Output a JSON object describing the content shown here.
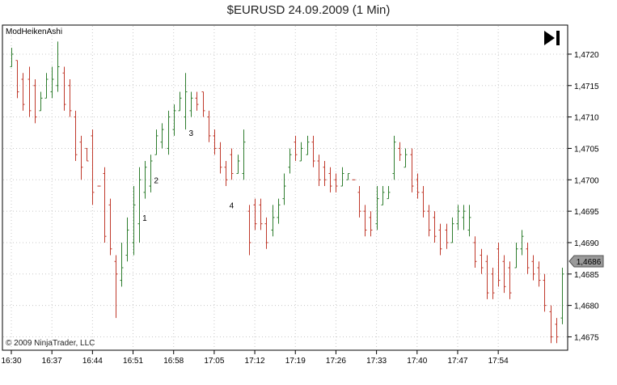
{
  "title": "$EURUSD  24.09.2009 (1 Min)",
  "indicator_label": "ModHeikenAshi",
  "copyright": "© 2009 NinjaTrader, LLC",
  "current_price_label": "1,4686",
  "colors": {
    "up": "#2e7d2e",
    "down": "#c0392b",
    "grid": "#c8c8c8",
    "axis": "#000000",
    "price_box": "#9a9a9a"
  },
  "chart_data": {
    "type": "ohlc",
    "title": "$EURUSD  24.09.2009 (1 Min)",
    "xlabel": "",
    "ylabel": "",
    "ylim": [
      1.4673,
      1.47245
    ],
    "y_ticks": [
      "1,4675",
      "1,4680",
      "1,4685",
      "1,4690",
      "1,4695",
      "1,4700",
      "1,4705",
      "1,4710",
      "1,4715",
      "1,4720"
    ],
    "x_ticks": [
      "16:30",
      "16:37",
      "16:44",
      "16:51",
      "16:58",
      "17:05",
      "17:12",
      "17:19",
      "17:26",
      "17:33",
      "17:40",
      "17:47",
      "17:54"
    ],
    "grid": true,
    "annotations": [
      {
        "label": "1",
        "bar": 23,
        "y": 1.4694
      },
      {
        "label": "2",
        "bar": 25,
        "y": 1.47
      },
      {
        "label": "3",
        "bar": 31,
        "y": 1.47075
      },
      {
        "label": "4",
        "bar": 38,
        "y": 1.4696
      }
    ],
    "bars": [
      {
        "d": "u",
        "h": 1.4721,
        "l": 1.4718,
        "o": 1.4718,
        "c": 1.472
      },
      {
        "d": "d",
        "h": 1.4719,
        "l": 1.4713,
        "o": 1.4719,
        "c": 1.4714
      },
      {
        "d": "d",
        "h": 1.4717,
        "l": 1.4711,
        "o": 1.4716,
        "c": 1.4712
      },
      {
        "d": "d",
        "h": 1.4718,
        "l": 1.471,
        "o": 1.4716,
        "c": 1.4711
      },
      {
        "d": "d",
        "h": 1.4716,
        "l": 1.4709,
        "o": 1.4715,
        "c": 1.471
      },
      {
        "d": "u",
        "h": 1.4714,
        "l": 1.4711,
        "o": 1.4711,
        "c": 1.4713
      },
      {
        "d": "u",
        "h": 1.4717,
        "l": 1.4713,
        "o": 1.4713,
        "c": 1.4716
      },
      {
        "d": "u",
        "h": 1.4718,
        "l": 1.4713,
        "o": 1.4714,
        "c": 1.4716
      },
      {
        "d": "u",
        "h": 1.4722,
        "l": 1.4714,
        "o": 1.4715,
        "c": 1.4718
      },
      {
        "d": "d",
        "h": 1.4718,
        "l": 1.4711,
        "o": 1.4717,
        "c": 1.4712
      },
      {
        "d": "d",
        "h": 1.4716,
        "l": 1.471,
        "o": 1.4715,
        "c": 1.4711
      },
      {
        "d": "d",
        "h": 1.4711,
        "l": 1.4703,
        "o": 1.471,
        "c": 1.4704
      },
      {
        "d": "d",
        "h": 1.4707,
        "l": 1.47,
        "o": 1.4706,
        "c": 1.4702
      },
      {
        "d": "d",
        "h": 1.4705,
        "l": 1.4703,
        "o": 1.4705,
        "c": 1.4703
      },
      {
        "d": "d",
        "h": 1.4708,
        "l": 1.4696,
        "o": 1.4707,
        "c": 1.4698
      },
      {
        "d": "d",
        "h": 1.4699,
        "l": 1.4699,
        "o": 1.4699,
        "c": 1.4699
      },
      {
        "d": "d",
        "h": 1.4702,
        "l": 1.469,
        "o": 1.4701,
        "c": 1.4691
      },
      {
        "d": "d",
        "h": 1.4697,
        "l": 1.4688,
        "o": 1.4696,
        "c": 1.4689
      },
      {
        "d": "d",
        "h": 1.4688,
        "l": 1.4678,
        "o": 1.4687,
        "c": 1.4685
      },
      {
        "d": "u",
        "h": 1.469,
        "l": 1.4683,
        "o": 1.4684,
        "c": 1.4686
      },
      {
        "d": "u",
        "h": 1.4694,
        "l": 1.4687,
        "o": 1.4688,
        "c": 1.4692
      },
      {
        "d": "u",
        "h": 1.4699,
        "l": 1.4688,
        "o": 1.469,
        "c": 1.4696
      },
      {
        "d": "u",
        "h": 1.4702,
        "l": 1.469,
        "o": 1.4693,
        "c": 1.47
      },
      {
        "d": "u",
        "h": 1.4703,
        "l": 1.4697,
        "o": 1.4698,
        "c": 1.4702
      },
      {
        "d": "u",
        "h": 1.4704,
        "l": 1.4698,
        "o": 1.4699,
        "c": 1.4703
      },
      {
        "d": "u",
        "h": 1.4708,
        "l": 1.4704,
        "o": 1.4704,
        "c": 1.4707
      },
      {
        "d": "u",
        "h": 1.4709,
        "l": 1.4705,
        "o": 1.4706,
        "c": 1.4708
      },
      {
        "d": "u",
        "h": 1.4711,
        "l": 1.4704,
        "o": 1.4705,
        "c": 1.471
      },
      {
        "d": "u",
        "h": 1.4712,
        "l": 1.4707,
        "o": 1.4708,
        "c": 1.4711
      },
      {
        "d": "u",
        "h": 1.4714,
        "l": 1.4711,
        "o": 1.4711,
        "c": 1.4713
      },
      {
        "d": "u",
        "h": 1.4717,
        "l": 1.4708,
        "o": 1.471,
        "c": 1.4714
      },
      {
        "d": "u",
        "h": 1.4714,
        "l": 1.471,
        "o": 1.4711,
        "c": 1.4713
      },
      {
        "d": "d",
        "h": 1.4714,
        "l": 1.4711,
        "o": 1.4713,
        "c": 1.4712
      },
      {
        "d": "d",
        "h": 1.4714,
        "l": 1.471,
        "o": 1.4714,
        "c": 1.4711
      },
      {
        "d": "d",
        "h": 1.4711,
        "l": 1.4706,
        "o": 1.471,
        "c": 1.4707
      },
      {
        "d": "d",
        "h": 1.4708,
        "l": 1.4704,
        "o": 1.4707,
        "c": 1.4705
      },
      {
        "d": "d",
        "h": 1.4706,
        "l": 1.4701,
        "o": 1.4705,
        "c": 1.4702
      },
      {
        "d": "d",
        "h": 1.4703,
        "l": 1.4699,
        "o": 1.4702,
        "c": 1.47
      },
      {
        "d": "d",
        "h": 1.4705,
        "l": 1.47,
        "o": 1.4704,
        "c": 1.4701
      },
      {
        "d": "u",
        "h": 1.4704,
        "l": 1.4701,
        "o": 1.4701,
        "c": 1.4703
      },
      {
        "d": "u",
        "h": 1.4708,
        "l": 1.47,
        "o": 1.4701,
        "c": 1.4706
      },
      {
        "d": "d",
        "h": 1.4696,
        "l": 1.4688,
        "o": 1.4695,
        "c": 1.469
      },
      {
        "d": "d",
        "h": 1.4697,
        "l": 1.4692,
        "o": 1.4696,
        "c": 1.4693
      },
      {
        "d": "d",
        "h": 1.4697,
        "l": 1.4692,
        "o": 1.4696,
        "c": 1.4693
      },
      {
        "d": "d",
        "h": 1.4694,
        "l": 1.4689,
        "o": 1.4693,
        "c": 1.469
      },
      {
        "d": "u",
        "h": 1.4696,
        "l": 1.4691,
        "o": 1.4692,
        "c": 1.4694
      },
      {
        "d": "u",
        "h": 1.4697,
        "l": 1.4693,
        "o": 1.4694,
        "c": 1.4696
      },
      {
        "d": "u",
        "h": 1.4701,
        "l": 1.4696,
        "o": 1.4697,
        "c": 1.4699
      },
      {
        "d": "u",
        "h": 1.4705,
        "l": 1.4701,
        "o": 1.4702,
        "c": 1.4704
      },
      {
        "d": "d",
        "h": 1.4707,
        "l": 1.4703,
        "o": 1.4706,
        "c": 1.4704
      },
      {
        "d": "u",
        "h": 1.4706,
        "l": 1.4703,
        "o": 1.4703,
        "c": 1.4705
      },
      {
        "d": "u",
        "h": 1.4707,
        "l": 1.4704,
        "o": 1.4704,
        "c": 1.4706
      },
      {
        "d": "d",
        "h": 1.4707,
        "l": 1.4702,
        "o": 1.4706,
        "c": 1.4703
      },
      {
        "d": "d",
        "h": 1.4704,
        "l": 1.4699,
        "o": 1.4703,
        "c": 1.47
      },
      {
        "d": "d",
        "h": 1.4703,
        "l": 1.4699,
        "o": 1.4702,
        "c": 1.47
      },
      {
        "d": "d",
        "h": 1.4702,
        "l": 1.4698,
        "o": 1.4701,
        "c": 1.4699
      },
      {
        "d": "d",
        "h": 1.4701,
        "l": 1.4698,
        "o": 1.47,
        "c": 1.4699
      },
      {
        "d": "u",
        "h": 1.4702,
        "l": 1.4699,
        "o": 1.4699,
        "c": 1.4701
      },
      {
        "d": "u",
        "h": 1.4701,
        "l": 1.47,
        "o": 1.47,
        "c": 1.4701
      },
      {
        "d": "d",
        "h": 1.47,
        "l": 1.47,
        "o": 1.47,
        "c": 1.47
      },
      {
        "d": "d",
        "h": 1.4699,
        "l": 1.4694,
        "o": 1.4698,
        "c": 1.4695
      },
      {
        "d": "d",
        "h": 1.4696,
        "l": 1.4691,
        "o": 1.4695,
        "c": 1.4692
      },
      {
        "d": "d",
        "h": 1.4695,
        "l": 1.4691,
        "o": 1.4694,
        "c": 1.4692
      },
      {
        "d": "u",
        "h": 1.4699,
        "l": 1.4692,
        "o": 1.4693,
        "c": 1.4697
      },
      {
        "d": "u",
        "h": 1.4699,
        "l": 1.4696,
        "o": 1.4696,
        "c": 1.4698
      },
      {
        "d": "u",
        "h": 1.4699,
        "l": 1.4697,
        "o": 1.4697,
        "c": 1.4698
      },
      {
        "d": "u",
        "h": 1.4707,
        "l": 1.47,
        "o": 1.4701,
        "c": 1.4706
      },
      {
        "d": "d",
        "h": 1.4706,
        "l": 1.4703,
        "o": 1.4705,
        "c": 1.4704
      },
      {
        "d": "u",
        "h": 1.4705,
        "l": 1.4702,
        "o": 1.4702,
        "c": 1.4704
      },
      {
        "d": "d",
        "h": 1.4705,
        "l": 1.4698,
        "o": 1.4704,
        "c": 1.4699
      },
      {
        "d": "d",
        "h": 1.4701,
        "l": 1.4697,
        "o": 1.47,
        "c": 1.4698
      },
      {
        "d": "d",
        "h": 1.4699,
        "l": 1.4694,
        "o": 1.4698,
        "c": 1.4695
      },
      {
        "d": "d",
        "h": 1.4696,
        "l": 1.4691,
        "o": 1.4695,
        "c": 1.4692
      },
      {
        "d": "d",
        "h": 1.4695,
        "l": 1.469,
        "o": 1.4694,
        "c": 1.4691
      },
      {
        "d": "d",
        "h": 1.4693,
        "l": 1.4688,
        "o": 1.4692,
        "c": 1.4689
      },
      {
        "d": "d",
        "h": 1.4693,
        "l": 1.4689,
        "o": 1.4692,
        "c": 1.469
      },
      {
        "d": "u",
        "h": 1.4694,
        "l": 1.469,
        "o": 1.469,
        "c": 1.4693
      },
      {
        "d": "u",
        "h": 1.4696,
        "l": 1.4692,
        "o": 1.4693,
        "c": 1.4695
      },
      {
        "d": "u",
        "h": 1.4696,
        "l": 1.4692,
        "o": 1.4694,
        "c": 1.4695
      },
      {
        "d": "u",
        "h": 1.4696,
        "l": 1.4691,
        "o": 1.4692,
        "c": 1.4694
      },
      {
        "d": "d",
        "h": 1.4691,
        "l": 1.4686,
        "o": 1.469,
        "c": 1.4687
      },
      {
        "d": "d",
        "h": 1.4689,
        "l": 1.4685,
        "o": 1.4688,
        "c": 1.4686
      },
      {
        "d": "d",
        "h": 1.4688,
        "l": 1.4681,
        "o": 1.4687,
        "c": 1.4682
      },
      {
        "d": "d",
        "h": 1.4686,
        "l": 1.4681,
        "o": 1.4685,
        "c": 1.4682
      },
      {
        "d": "d",
        "h": 1.469,
        "l": 1.4683,
        "o": 1.4689,
        "c": 1.4684
      },
      {
        "d": "d",
        "h": 1.4688,
        "l": 1.4682,
        "o": 1.4687,
        "c": 1.4683
      },
      {
        "d": "d",
        "h": 1.4687,
        "l": 1.4681,
        "o": 1.4686,
        "c": 1.4682
      },
      {
        "d": "u",
        "h": 1.469,
        "l": 1.4686,
        "o": 1.4686,
        "c": 1.4689
      },
      {
        "d": "u",
        "h": 1.4692,
        "l": 1.4688,
        "o": 1.4689,
        "c": 1.4691
      },
      {
        "d": "d",
        "h": 1.469,
        "l": 1.4685,
        "o": 1.4689,
        "c": 1.4686
      },
      {
        "d": "d",
        "h": 1.4688,
        "l": 1.4684,
        "o": 1.4687,
        "c": 1.4685
      },
      {
        "d": "d",
        "h": 1.4687,
        "l": 1.4683,
        "o": 1.4686,
        "c": 1.4684
      },
      {
        "d": "d",
        "h": 1.4685,
        "l": 1.4679,
        "o": 1.4684,
        "c": 1.468
      },
      {
        "d": "d",
        "h": 1.468,
        "l": 1.4674,
        "o": 1.4679,
        "c": 1.4675
      },
      {
        "d": "d",
        "h": 1.4678,
        "l": 1.4674,
        "o": 1.4677,
        "c": 1.4675
      },
      {
        "d": "u",
        "h": 1.4686,
        "l": 1.4677,
        "o": 1.4678,
        "c": 1.4685
      }
    ]
  }
}
